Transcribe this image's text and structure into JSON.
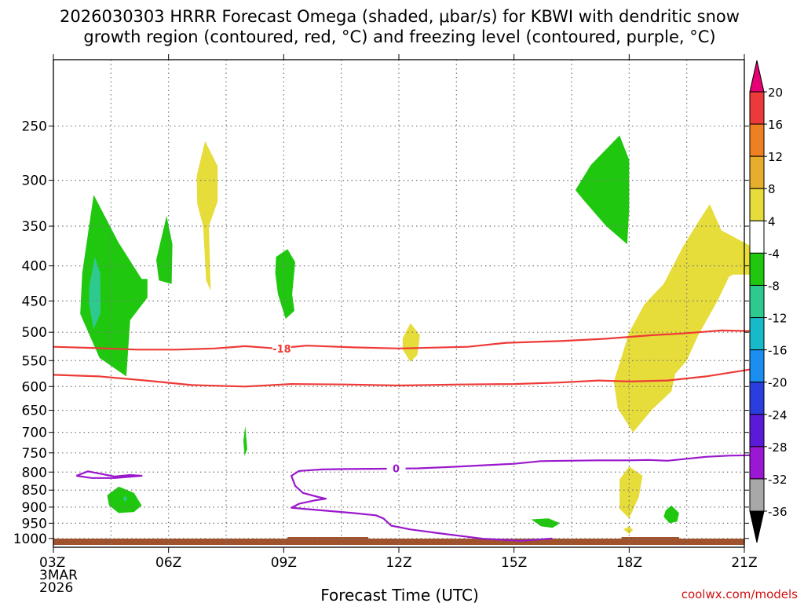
{
  "chart_data": {
    "type": "heatmap",
    "title_line1": "2026030303 HRRR Forecast Omega (shaded, μbar/s) for KBWI with dendritic snow",
    "title_line2": "growth region (contoured, red, °C) and freezing level (contoured, purple, °C)",
    "xlabel": "Forecast Time (UTC)",
    "ylabel": "",
    "x_ticks": [
      {
        "h": 0,
        "label": "03Z",
        "sub1": "3MAR",
        "sub2": "2026"
      },
      {
        "h": 3,
        "label": "06Z"
      },
      {
        "h": 6,
        "label": "09Z"
      },
      {
        "h": 9,
        "label": "12Z"
      },
      {
        "h": 12,
        "label": "15Z"
      },
      {
        "h": 15,
        "label": "18Z"
      },
      {
        "h": 18,
        "label": "21Z"
      }
    ],
    "xlim": [
      0,
      18
    ],
    "y_ticks": [
      {
        "p": 250,
        "label": "250"
      },
      {
        "p": 300,
        "label": "300"
      },
      {
        "p": 350,
        "label": "350"
      },
      {
        "p": 400,
        "label": "400"
      },
      {
        "p": 450,
        "label": "450"
      },
      {
        "p": 500,
        "label": "500"
      },
      {
        "p": 550,
        "label": "550"
      },
      {
        "p": 600,
        "label": "600"
      },
      {
        "p": 650,
        "label": "650"
      },
      {
        "p": 700,
        "label": "700"
      },
      {
        "p": 750,
        "label": "750"
      },
      {
        "p": 800,
        "label": "800"
      },
      {
        "p": 850,
        "label": "850"
      },
      {
        "p": 900,
        "label": "900"
      },
      {
        "p": 950,
        "label": "950"
      },
      {
        "p": 1000,
        "label": "1000"
      }
    ],
    "ylim": [
      200,
      1030
    ],
    "y_scale": "log",
    "y_inverted": true,
    "grid": true,
    "colorbar": {
      "labels": [
        "20",
        "16",
        "12",
        "8",
        "4",
        "-4",
        "-8",
        "-12",
        "-16",
        "-20",
        "-24",
        "-28",
        "-32",
        "-36"
      ],
      "colors": [
        "#e60073",
        "#ec3a3a",
        "#ee7f22",
        "#e7ad2d",
        "#e6dc3a",
        "#ffffff",
        "#1fc80f",
        "#2ec98f",
        "#18b9c8",
        "#1a8ff0",
        "#2a3ee0",
        "#5a1ad8",
        "#9a18d2",
        "#a8a8a8",
        "#000000"
      ]
    },
    "omega_regions": [
      {
        "name": "Green",
        "color": "#1fc80f",
        "points": [
          [
            0.75,
            410
          ],
          [
            1.05,
            315
          ],
          [
            1.7,
            370
          ],
          [
            2.3,
            418
          ],
          [
            2.45,
            418
          ],
          [
            2.45,
            445
          ],
          [
            2.0,
            480
          ],
          [
            1.9,
            580
          ],
          [
            1.2,
            545
          ],
          [
            0.7,
            470
          ]
        ]
      },
      {
        "name": "Teal",
        "color": "#2ec98f",
        "points": [
          [
            0.93,
            430
          ],
          [
            1.08,
            388
          ],
          [
            1.22,
            410
          ],
          [
            1.23,
            468
          ],
          [
            1.05,
            495
          ],
          [
            0.93,
            455
          ]
        ]
      },
      {
        "name": "Green",
        "color": "#1fc80f",
        "points": [
          [
            2.68,
            392
          ],
          [
            2.95,
            338
          ],
          [
            3.1,
            372
          ],
          [
            3.08,
            425
          ],
          [
            2.75,
            420
          ]
        ]
      },
      {
        "name": "Yellow",
        "color": "#e6dc3a",
        "points": [
          [
            3.73,
            296
          ],
          [
            3.95,
            263
          ],
          [
            4.28,
            286
          ],
          [
            4.28,
            322
          ],
          [
            4.05,
            350
          ],
          [
            4.1,
            435
          ],
          [
            3.98,
            420
          ],
          [
            3.9,
            350
          ],
          [
            3.75,
            325
          ]
        ]
      },
      {
        "name": "Green",
        "color": "#1fc80f",
        "points": [
          [
            5.8,
            388
          ],
          [
            6.1,
            378
          ],
          [
            6.3,
            395
          ],
          [
            6.22,
            440
          ],
          [
            6.28,
            465
          ],
          [
            6.05,
            478
          ],
          [
            5.85,
            440
          ],
          [
            5.78,
            410
          ]
        ]
      },
      {
        "name": "Yellow",
        "color": "#e6dc3a",
        "points": [
          [
            9.1,
            510
          ],
          [
            9.3,
            485
          ],
          [
            9.55,
            505
          ],
          [
            9.48,
            540
          ],
          [
            9.3,
            552
          ],
          [
            9.1,
            530
          ]
        ]
      },
      {
        "name": "Green",
        "color": "#1fc80f",
        "points": [
          [
            4.95,
            720
          ],
          [
            5.0,
            685
          ],
          [
            5.05,
            740
          ],
          [
            4.98,
            758
          ]
        ]
      },
      {
        "name": "Green",
        "color": "#1fc80f",
        "points": [
          [
            1.4,
            865
          ],
          [
            1.7,
            840
          ],
          [
            2.1,
            858
          ],
          [
            2.3,
            895
          ],
          [
            2.1,
            915
          ],
          [
            1.7,
            918
          ],
          [
            1.45,
            895
          ]
        ]
      },
      {
        "name": "Teal",
        "color": "#2ec98f",
        "points": [
          [
            1.82,
            873
          ],
          [
            1.88,
            866
          ],
          [
            1.92,
            877
          ],
          [
            1.87,
            884
          ]
        ]
      },
      {
        "name": "Green",
        "color": "#1fc80f",
        "points": [
          [
            13.6,
            310
          ],
          [
            14.0,
            285
          ],
          [
            14.75,
            258
          ],
          [
            15.0,
            280
          ],
          [
            15.0,
            330
          ],
          [
            14.95,
            372
          ],
          [
            14.4,
            350
          ],
          [
            13.8,
            320
          ]
        ]
      },
      {
        "name": "Yellow",
        "color": "#e6dc3a",
        "points": [
          [
            16.4,
            375
          ],
          [
            16.8,
            345
          ],
          [
            17.1,
            325
          ],
          [
            17.4,
            355
          ],
          [
            18.2,
            375
          ],
          [
            18.2,
            412
          ],
          [
            17.7,
            412
          ],
          [
            17.6,
            415
          ],
          [
            17.3,
            450
          ],
          [
            16.8,
            505
          ],
          [
            16.5,
            550
          ],
          [
            16.2,
            575
          ],
          [
            16.1,
            610
          ],
          [
            15.6,
            648
          ],
          [
            15.1,
            700
          ],
          [
            14.7,
            645
          ],
          [
            14.6,
            590
          ],
          [
            14.75,
            555
          ],
          [
            15.0,
            500
          ],
          [
            15.4,
            455
          ],
          [
            15.9,
            425
          ]
        ]
      },
      {
        "name": "Yellow",
        "color": "#e6dc3a",
        "points": [
          [
            14.75,
            820
          ],
          [
            15.0,
            785
          ],
          [
            15.35,
            810
          ],
          [
            15.25,
            870
          ],
          [
            15.0,
            935
          ],
          [
            14.75,
            905
          ]
        ]
      },
      {
        "name": "Yellow",
        "color": "#e6dc3a",
        "points": [
          [
            14.85,
            970
          ],
          [
            15.0,
            960
          ],
          [
            15.1,
            972
          ],
          [
            15.0,
            985
          ]
        ]
      },
      {
        "name": "Green",
        "color": "#1fc80f",
        "points": [
          [
            12.45,
            938
          ],
          [
            12.9,
            935
          ],
          [
            13.2,
            950
          ],
          [
            13.0,
            965
          ],
          [
            12.7,
            960
          ]
        ]
      },
      {
        "name": "Green",
        "color": "#1fc80f",
        "points": [
          [
            15.95,
            910
          ],
          [
            16.1,
            895
          ],
          [
            16.3,
            918
          ],
          [
            16.25,
            945
          ],
          [
            16.05,
            950
          ],
          [
            15.9,
            930
          ]
        ]
      }
    ],
    "dgz_contours": [
      {
        "label": "-18",
        "color": "#ee3a36",
        "label_at": [
          5.95,
          528
        ],
        "points": [
          [
            0,
            525
          ],
          [
            1.0,
            527
          ],
          [
            2.2,
            530
          ],
          [
            3.2,
            530
          ],
          [
            4.2,
            528
          ],
          [
            5.0,
            524
          ],
          [
            5.8,
            528
          ],
          [
            6.6,
            523
          ],
          [
            7.8,
            526
          ],
          [
            9.0,
            528
          ],
          [
            10.8,
            525
          ],
          [
            11.8,
            518
          ],
          [
            13.2,
            515
          ],
          [
            14.4,
            511
          ],
          [
            15.6,
            505
          ],
          [
            16.4,
            502
          ],
          [
            17.4,
            497
          ],
          [
            18.2,
            498
          ]
        ]
      },
      {
        "label": "",
        "color": "#ee3a36",
        "label_at": null,
        "points": [
          [
            0,
            577
          ],
          [
            1.2,
            580
          ],
          [
            2.4,
            588
          ],
          [
            3.6,
            597
          ],
          [
            5.0,
            600
          ],
          [
            6.2,
            595
          ],
          [
            7.6,
            596
          ],
          [
            9.0,
            598
          ],
          [
            10.6,
            596
          ],
          [
            12.0,
            595
          ],
          [
            13.2,
            592
          ],
          [
            14.2,
            588
          ],
          [
            15.0,
            590
          ],
          [
            16.0,
            588
          ],
          [
            17.0,
            580
          ],
          [
            18.2,
            566
          ]
        ]
      }
    ],
    "freezing_contours": [
      {
        "label": "0",
        "color": "#9a18cc",
        "label_at": [
          8.93,
          790
        ],
        "points": [
          [
            13.0,
            1000
          ],
          [
            12.2,
            1008
          ],
          [
            11.2,
            1001
          ],
          [
            10.2,
            985
          ],
          [
            9.3,
            970
          ],
          [
            8.8,
            958
          ],
          [
            8.6,
            935
          ],
          [
            8.4,
            925
          ],
          [
            7.8,
            918
          ],
          [
            7.2,
            912
          ],
          [
            6.5,
            905
          ],
          [
            6.2,
            902
          ],
          [
            6.4,
            890
          ],
          [
            6.8,
            880
          ],
          [
            7.1,
            875
          ],
          [
            6.9,
            870
          ],
          [
            6.5,
            858
          ],
          [
            6.3,
            838
          ],
          [
            6.2,
            810
          ],
          [
            6.4,
            797
          ],
          [
            7.0,
            793
          ],
          [
            7.6,
            792
          ],
          [
            8.7,
            791
          ],
          [
            9.5,
            790
          ],
          [
            10.4,
            786
          ],
          [
            11.2,
            782
          ],
          [
            12.0,
            778
          ],
          [
            12.7,
            771
          ],
          [
            13.4,
            770
          ],
          [
            14.2,
            769
          ],
          [
            15.0,
            769
          ],
          [
            15.5,
            768
          ],
          [
            16.0,
            770
          ],
          [
            16.5,
            765
          ],
          [
            17.0,
            760
          ],
          [
            17.6,
            757
          ],
          [
            18.2,
            756
          ]
        ]
      },
      {
        "label": "",
        "color": "#9a18cc",
        "label_at": null,
        "points": [
          [
            0.6,
            810
          ],
          [
            0.9,
            798
          ],
          [
            1.3,
            806
          ],
          [
            1.6,
            812
          ],
          [
            2.0,
            808
          ],
          [
            2.3,
            810
          ],
          [
            1.6,
            816
          ],
          [
            1.0,
            816
          ],
          [
            0.6,
            810
          ]
        ]
      }
    ],
    "terrain": {
      "color": "#a0522d"
    }
  },
  "credit": "coolwx.com/models"
}
